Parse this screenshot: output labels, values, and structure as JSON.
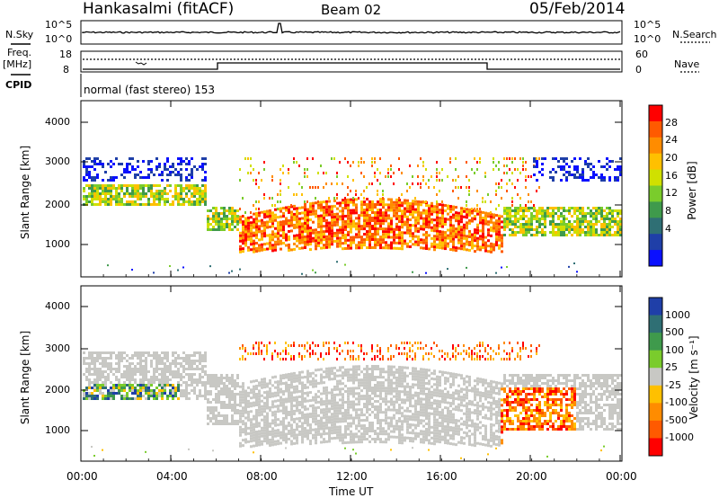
{
  "header": {
    "station": "Hankasalmi (fitACF)",
    "beam": "Beam 02",
    "date": "05/Feb/2014"
  },
  "left_labels": {
    "nsky": "N.Sky",
    "freq_line1": "Freq.",
    "freq_line2": "[MHz]",
    "cpid": "CPID"
  },
  "right_labels": {
    "nsearch": "N.Search",
    "nave": "Nave"
  },
  "noise_ticks": {
    "top": "10^5",
    "bottom": "10^0"
  },
  "freq_ticks": {
    "top": "18",
    "bottom": "8"
  },
  "nave_ticks": {
    "top": "60",
    "bottom": "0"
  },
  "cpid_text": "normal (fast stereo) 153",
  "chart_data": [
    {
      "type": "heatmap",
      "panel": "power",
      "ylabel": "Slant Range [km]",
      "xlabel": "Time UT",
      "ylim": [
        200,
        4500
      ],
      "y_ticks": [
        "4000",
        "3000",
        "2000",
        "1000"
      ],
      "x_ticks": [
        "00:00",
        "04:00",
        "08:00",
        "12:00",
        "16:00",
        "20:00",
        "00:00"
      ],
      "colorbar": {
        "label": "Power [dB]",
        "ticks": [
          "28",
          "24",
          "20",
          "16",
          "12",
          "8",
          "4"
        ],
        "colors": [
          "#ff0000",
          "#ff5a00",
          "#ff8c00",
          "#ffc000",
          "#d0e000",
          "#7acc2c",
          "#3f9a4c",
          "#2f6f74",
          "#1f3fa8",
          "#0a10ff"
        ]
      }
    },
    {
      "type": "heatmap",
      "panel": "velocity",
      "ylabel": "Slant Range [km]",
      "xlabel": "Time UT",
      "ylim": [
        200,
        4500
      ],
      "y_ticks": [
        "4000",
        "3000",
        "2000",
        "1000"
      ],
      "x_ticks": [
        "00:00",
        "04:00",
        "08:00",
        "12:00",
        "16:00",
        "20:00",
        "00:00"
      ],
      "colorbar": {
        "label": "Velocity [m s⁻¹]",
        "ticks": [
          "1000",
          "500",
          "100",
          "25",
          "-25",
          "-100",
          "-500",
          "-1000"
        ],
        "colors": [
          "#1f3fa8",
          "#2f6f74",
          "#3f9a4c",
          "#7acc2c",
          "#c8c8c4",
          "#ffc000",
          "#ff8c00",
          "#ff5a00",
          "#ff0000"
        ]
      }
    }
  ],
  "xlabel": "Time UT"
}
